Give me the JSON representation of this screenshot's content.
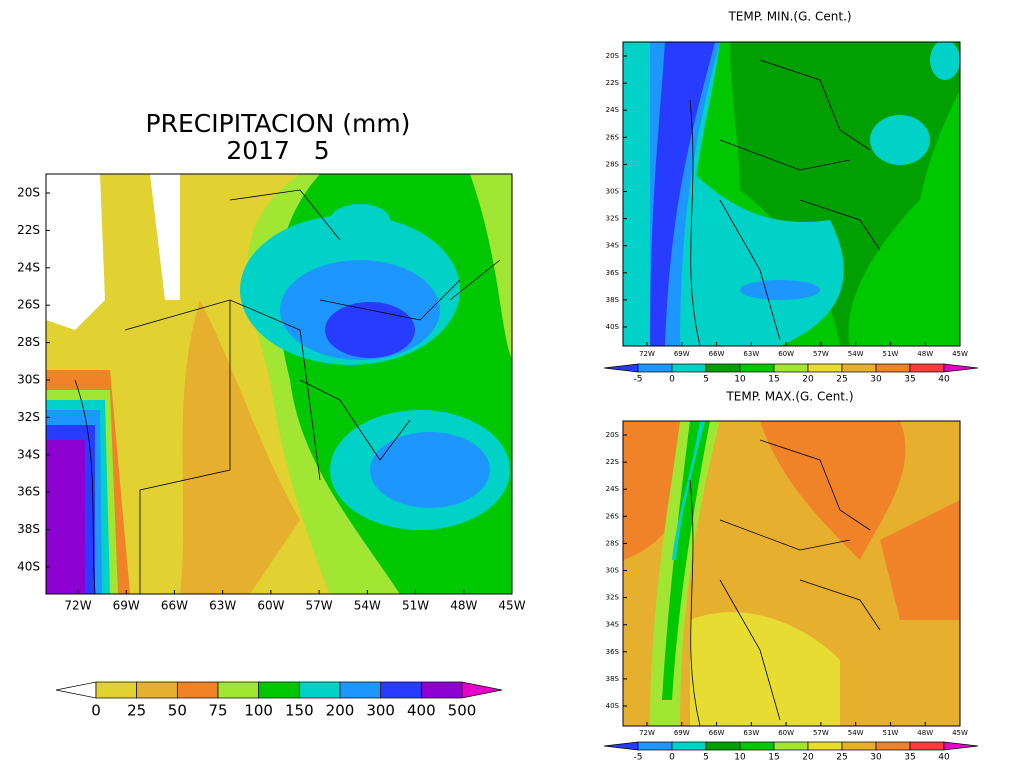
{
  "precip": {
    "title": "PRECIPITACION (mm)",
    "subtitle": "2017   5",
    "lat_labels": [
      "20S",
      "22S",
      "24S",
      "26S",
      "28S",
      "30S",
      "32S",
      "34S",
      "36S",
      "38S",
      "40S"
    ],
    "lon_labels": [
      "72W",
      "69W",
      "66W",
      "63W",
      "60W",
      "57W",
      "54W",
      "51W",
      "48W",
      "45W"
    ],
    "colorbar": {
      "labels": [
        0,
        25,
        50,
        75,
        100,
        150,
        200,
        300,
        400,
        500
      ],
      "colors": [
        "#ffffff",
        "#e1d232",
        "#e6af2d",
        "#f08228",
        "#a0e632",
        "#00c800",
        "#00d2c8",
        "#1e96ff",
        "#283cff",
        "#8c00d2",
        "#e600c8"
      ]
    }
  },
  "tmin": {
    "title": "TEMP. MIN.(G. Cent.)",
    "lat_labels": [
      "20S",
      "22S",
      "24S",
      "26S",
      "28S",
      "30S",
      "32S",
      "34S",
      "36S",
      "38S",
      "40S"
    ],
    "lon_labels": [
      "72W",
      "69W",
      "66W",
      "63W",
      "60W",
      "57W",
      "54W",
      "51W",
      "48W",
      "45W"
    ],
    "colorbar": {
      "labels": [
        -5,
        0,
        5,
        10,
        15,
        20,
        25,
        30,
        35,
        40
      ],
      "colors": [
        "#283cff",
        "#1e96ff",
        "#00d2c8",
        "#00a000",
        "#00c800",
        "#a0e632",
        "#e6dc32",
        "#e6af2d",
        "#f08228",
        "#fa3c3c",
        "#e600c8"
      ]
    }
  },
  "tmax": {
    "title": "TEMP. MAX.(G. Cent.)",
    "lat_labels": [
      "20S",
      "22S",
      "24S",
      "26S",
      "28S",
      "30S",
      "32S",
      "34S",
      "36S",
      "38S",
      "40S"
    ],
    "lon_labels": [
      "72W",
      "69W",
      "66W",
      "63W",
      "60W",
      "57W",
      "54W",
      "51W",
      "48W",
      "45W"
    ],
    "colorbar": {
      "labels": [
        -5,
        0,
        5,
        10,
        15,
        20,
        25,
        30,
        35,
        40
      ],
      "colors": [
        "#283cff",
        "#1e96ff",
        "#00d2c8",
        "#00a000",
        "#00c800",
        "#a0e632",
        "#e6dc32",
        "#e6af2d",
        "#f08228",
        "#fa3c3c",
        "#e600c8"
      ]
    }
  }
}
